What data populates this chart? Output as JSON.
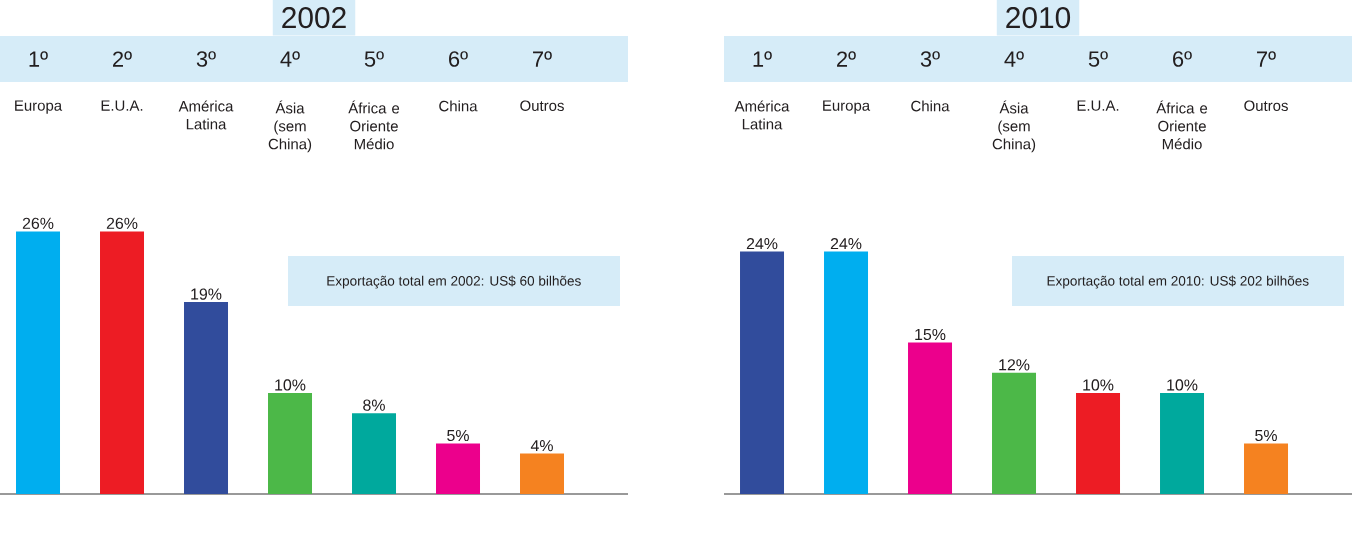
{
  "chart_data": [
    {
      "type": "bar",
      "title": "2002",
      "categories": [
        "Europa",
        "E.U.A.",
        "América Latina",
        "Ásia (sem China)",
        "África e Oriente Médio",
        "China",
        "Outros"
      ],
      "values": [
        26,
        26,
        19,
        10,
        8,
        5,
        4
      ],
      "value_labels": [
        "26%",
        "26%",
        "19%",
        "10%",
        "8%",
        "5%",
        "4%"
      ],
      "colors": [
        "#00aeef",
        "#ed1c24",
        "#314c9c",
        "#4cb848",
        "#00a99d",
        "#ec008c",
        "#f58220"
      ],
      "annotations": [
        "1º",
        "2º",
        "3º",
        "4º",
        "5º",
        "6º",
        "7º",
        "Exportação total em 2002: US$ 60 bilhões"
      ]
    },
    {
      "type": "bar",
      "title": "2010",
      "categories": [
        "América Latina",
        "Europa",
        "China",
        "Ásia (sem China)",
        "E.U.A.",
        "África e Oriente Médio",
        "Outros"
      ],
      "values": [
        24,
        24,
        15,
        12,
        10,
        10,
        5
      ],
      "value_labels": [
        "24%",
        "24%",
        "15%",
        "12%",
        "10%",
        "10%",
        "5%"
      ],
      "colors": [
        "#314c9c",
        "#00aeef",
        "#ec008c",
        "#4cb848",
        "#ed1c24",
        "#00a99d",
        "#f58220"
      ],
      "annotations": [
        "1º",
        "2º",
        "3º",
        "4º",
        "5º",
        "6º",
        "7º",
        "Exportação total em 2010: US$ 202 bilhões"
      ]
    }
  ]
}
